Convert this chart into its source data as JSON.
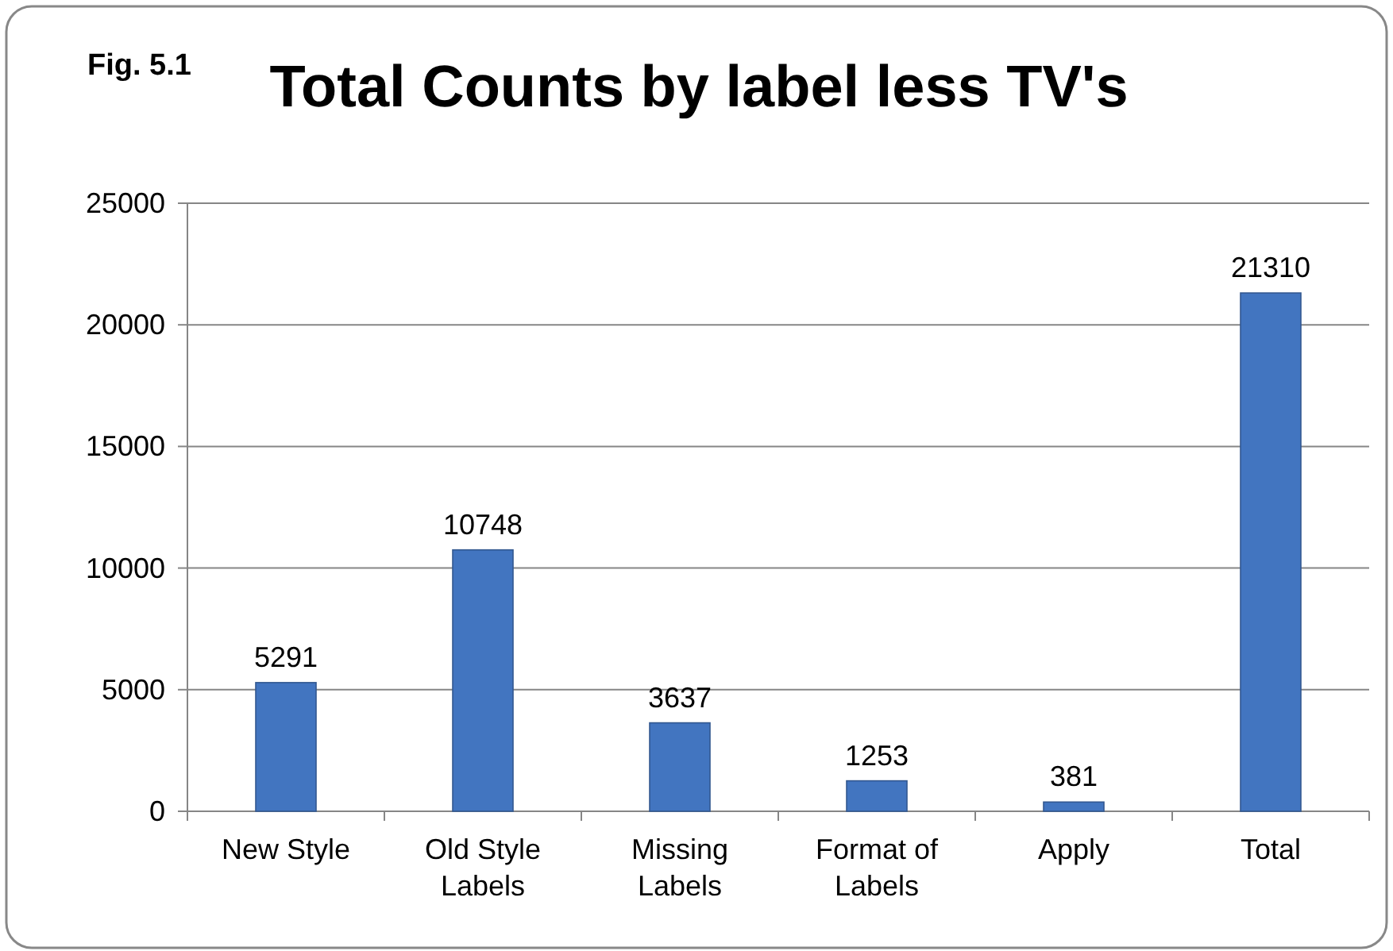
{
  "chart_data": {
    "type": "bar",
    "title": "Total Counts by label less TV's",
    "annotations": [
      "Fig. 5.1"
    ],
    "categories": [
      "New Style",
      "Old Style Labels",
      "Missing Labels",
      "Format of Labels",
      "Apply",
      "Total"
    ],
    "values": [
      5291,
      10748,
      3637,
      1253,
      381,
      21310
    ],
    "color": "#4275c0",
    "ylim": [
      0,
      25000
    ],
    "yticks": [
      0,
      5000,
      10000,
      15000,
      20000,
      25000
    ],
    "grid": "y",
    "data_labels": true
  }
}
